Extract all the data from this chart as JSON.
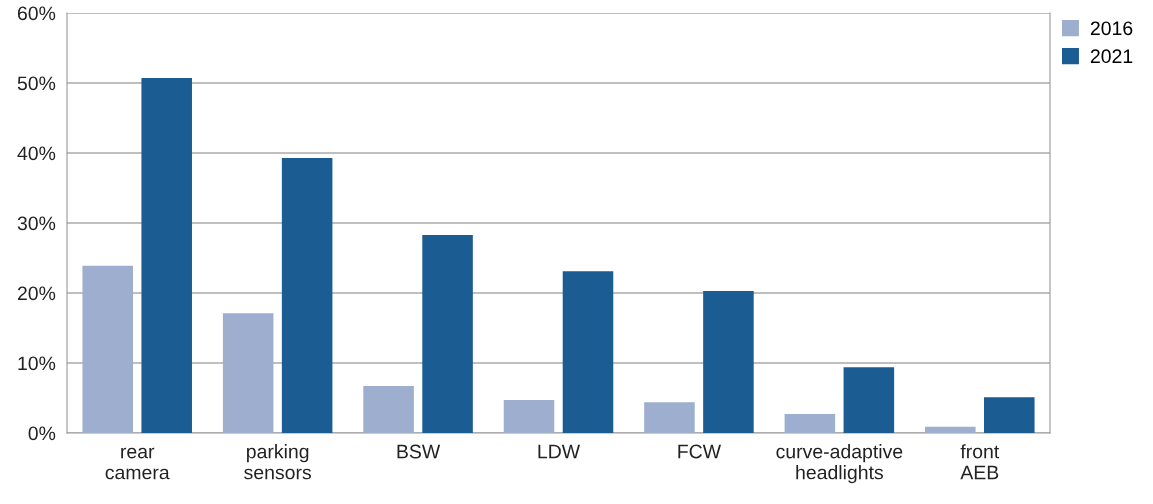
{
  "chart_data": {
    "type": "bar",
    "categories": [
      "rear\ncamera",
      "parking\nsensors",
      "BSW",
      "LDW",
      "FCW",
      "curve-adaptive\nheadlights",
      "front\nAEB"
    ],
    "series": [
      {
        "name": "2016",
        "color": "#9daecf",
        "values": [
          23.9,
          17.1,
          6.7,
          4.7,
          4.4,
          2.7,
          0.9
        ]
      },
      {
        "name": "2021",
        "color": "#1b5c93",
        "values": [
          50.7,
          39.3,
          28.3,
          23.1,
          20.3,
          9.4,
          5.1
        ]
      }
    ],
    "ylim": [
      0,
      60
    ],
    "yticks": [
      {
        "value": 0,
        "label": "0%"
      },
      {
        "value": 10,
        "label": "10%"
      },
      {
        "value": 20,
        "label": "20%"
      },
      {
        "value": 30,
        "label": "30%"
      },
      {
        "value": 40,
        "label": "40%"
      },
      {
        "value": 50,
        "label": "50%"
      },
      {
        "value": 60,
        "label": "60%"
      }
    ],
    "grid": "y",
    "legend": "top right"
  }
}
